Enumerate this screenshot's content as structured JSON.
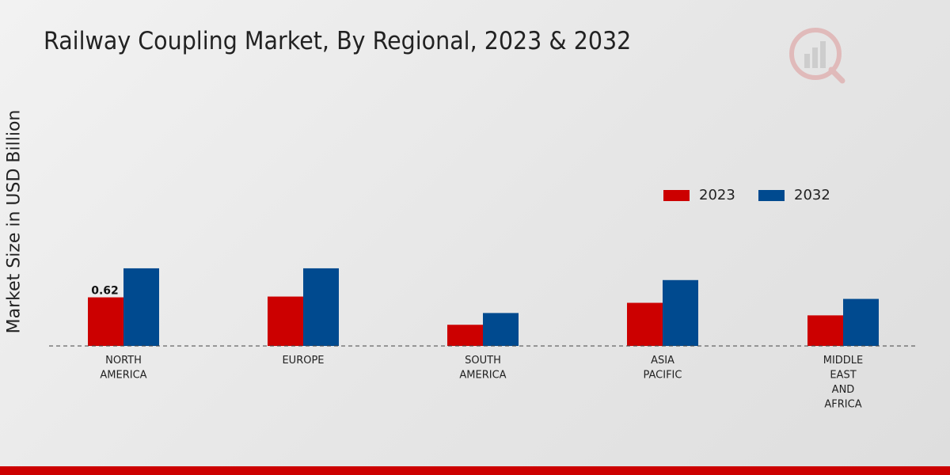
{
  "chart_data": {
    "type": "bar",
    "title": "Railway Coupling Market, By Regional, 2023 & 2032",
    "xlabel": "",
    "ylabel": "Market Size in USD Billion",
    "categories": [
      [
        "NORTH",
        "AMERICA"
      ],
      [
        "EUROPE"
      ],
      [
        "SOUTH",
        "AMERICA"
      ],
      [
        "ASIA",
        "PACIFIC"
      ],
      [
        "MIDDLE",
        "EAST",
        "AND",
        "AFRICA"
      ]
    ],
    "series": [
      {
        "name": "2023",
        "color": "#cc0000",
        "values": [
          0.62,
          0.63,
          0.27,
          0.55,
          0.39
        ]
      },
      {
        "name": "2032",
        "color": "#004a8f",
        "values": [
          0.99,
          0.99,
          0.42,
          0.84,
          0.6
        ]
      }
    ],
    "data_labels": [
      {
        "series": 0,
        "index": 0,
        "text": "0.62"
      }
    ],
    "ylim": [
      0,
      3.2
    ],
    "grid": false,
    "legend_position": "right"
  }
}
